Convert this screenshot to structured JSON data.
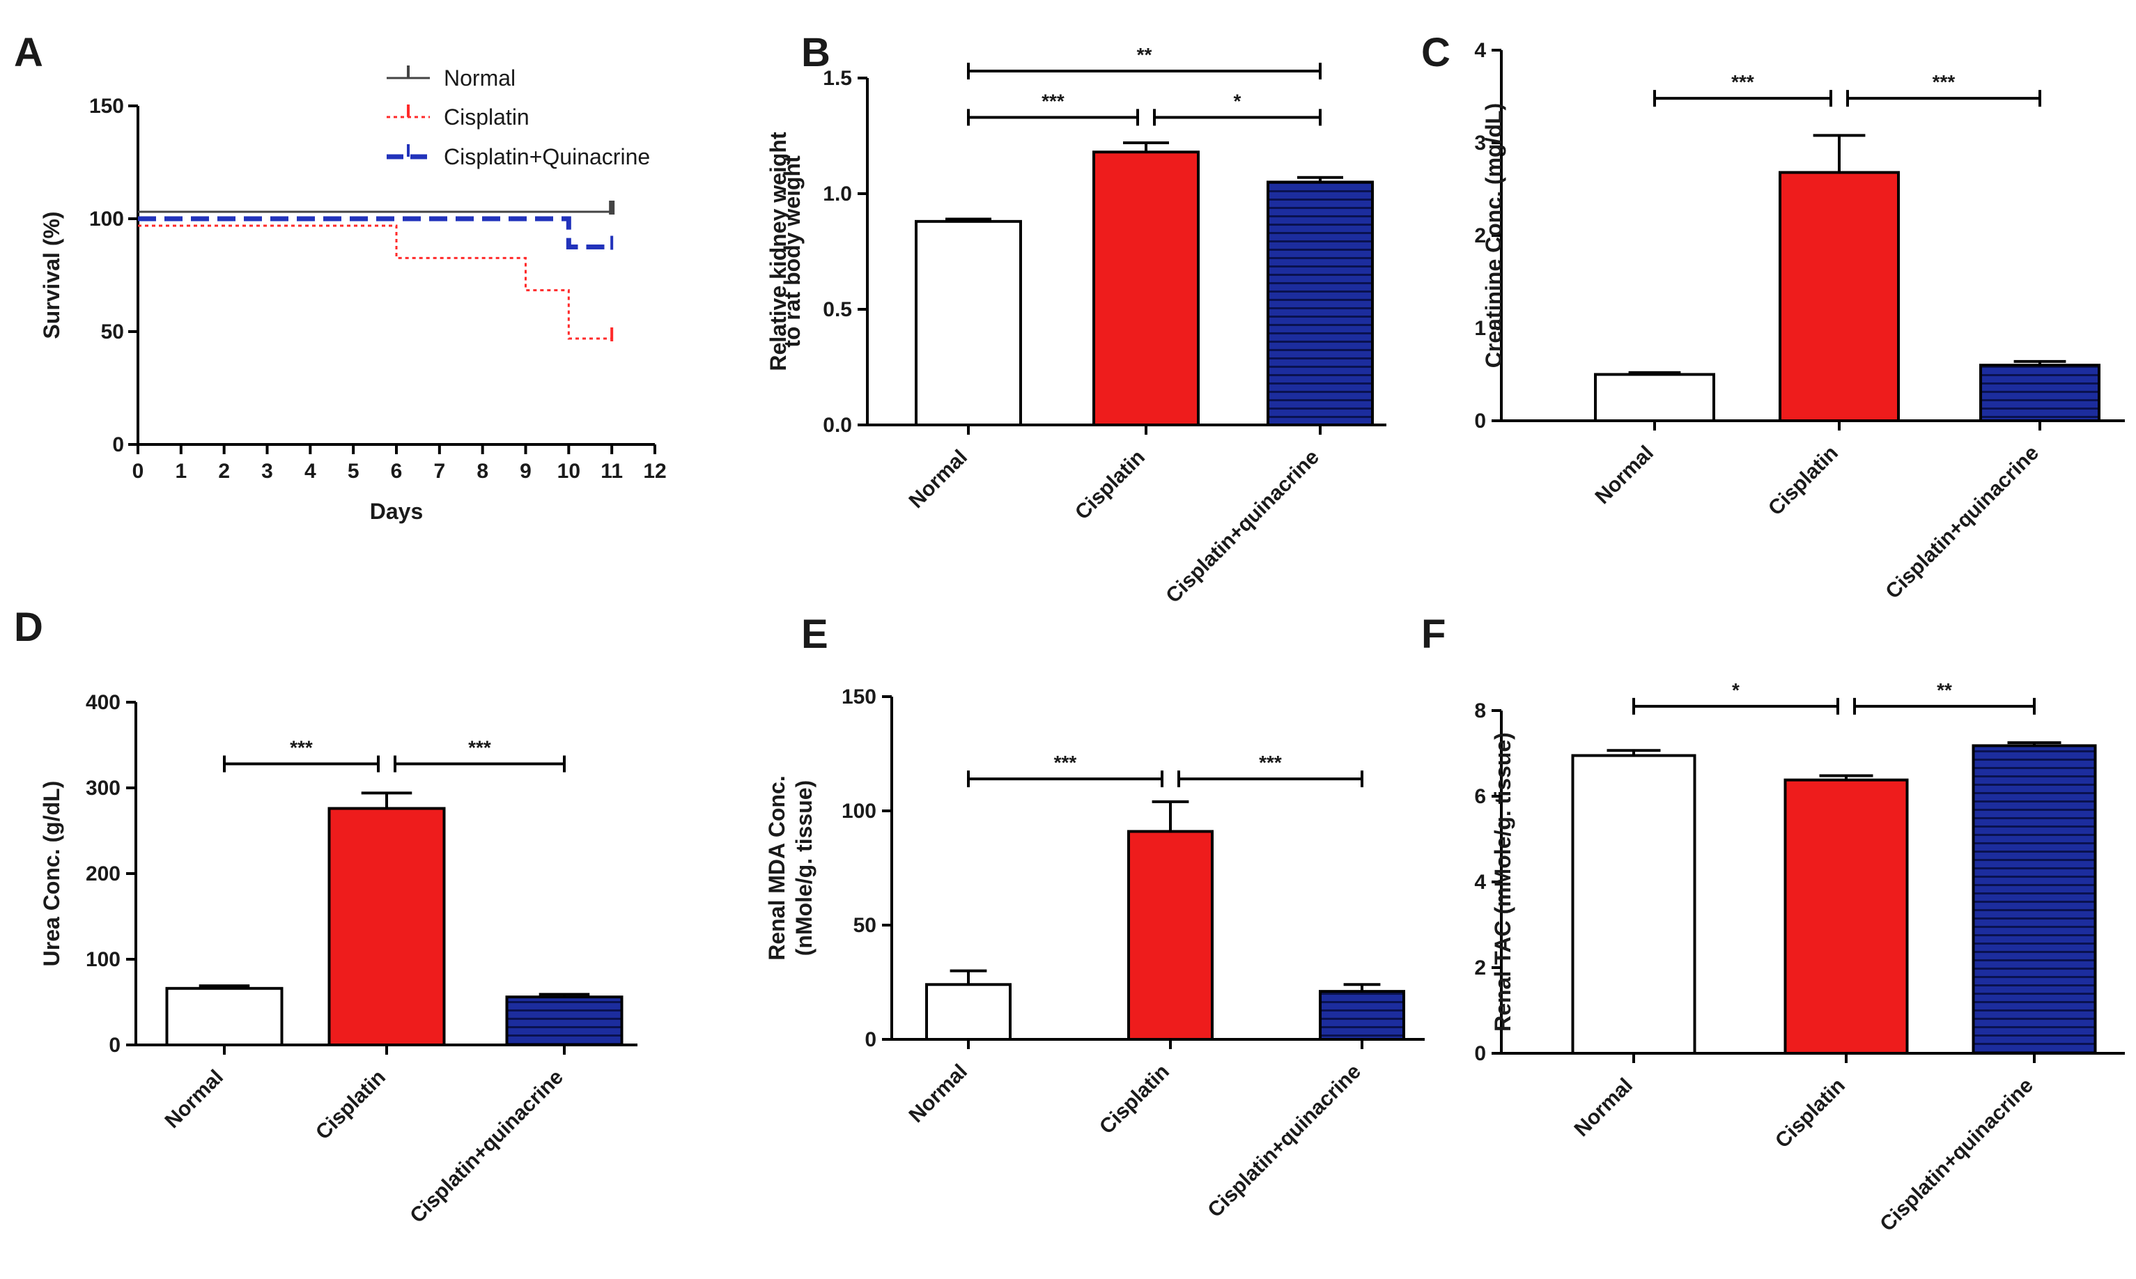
{
  "colors": {
    "normal": "#ffffff",
    "cisplatin": "#ee1c1c",
    "quinacrine": "#1c2d9e",
    "survival_normal": "#444444",
    "survival_cisplatin": "#ff2a2a",
    "survival_quinacrine": "#2233bb"
  },
  "chart_data": [
    {
      "id": "A",
      "letter": "A",
      "type": "line",
      "subtype": "kaplan-meier",
      "xlabel": "Days",
      "ylabel": "Survival (%)",
      "xlim": [
        0,
        12
      ],
      "ylim": [
        0,
        150
      ],
      "xticks": [
        "0",
        "1",
        "2",
        "3",
        "4",
        "5",
        "6",
        "7",
        "8",
        "9",
        "10",
        "11",
        "12"
      ],
      "yticks": [
        "0",
        "50",
        "100",
        "150"
      ],
      "legend_position": "top-right",
      "series": [
        {
          "name": "Normal",
          "color_key": "survival_normal",
          "style": "solid",
          "steps": [
            [
              0,
              100
            ],
            [
              11,
              100
            ]
          ],
          "censor_at": 11
        },
        {
          "name": "Cisplatin",
          "color_key": "survival_cisplatin",
          "style": "dotted",
          "steps": [
            [
              0,
              100
            ],
            [
              6,
              100
            ],
            [
              6,
              85.7
            ],
            [
              9,
              85.7
            ],
            [
              9,
              71.4
            ],
            [
              10,
              71.4
            ],
            [
              10,
              50
            ],
            [
              11,
              50
            ]
          ],
          "censor_at": 11
        },
        {
          "name": "Cisplatin+Quinacrine",
          "color_key": "survival_quinacrine",
          "style": "dashed",
          "steps": [
            [
              0,
              100
            ],
            [
              10,
              100
            ],
            [
              10,
              87.5
            ],
            [
              11,
              87.5
            ]
          ],
          "censor_at": 11
        }
      ]
    },
    {
      "id": "B",
      "letter": "B",
      "type": "bar",
      "ylabel_lines": [
        "Relative kidney weight",
        "to rat body weight"
      ],
      "ylim": [
        0,
        1.5
      ],
      "yticks": [
        "0.0",
        "0.5",
        "1.0",
        "1.5"
      ],
      "categories": [
        "Normal",
        "Cisplatin",
        "Cisplatin+quinacrine"
      ],
      "values": [
        0.88,
        1.18,
        1.05
      ],
      "errors": [
        0.01,
        0.04,
        0.02
      ],
      "comparisons": [
        {
          "from": 0,
          "to": 2,
          "label": "**",
          "level": 1.53
        },
        {
          "from": 0,
          "to": 1,
          "label": "***",
          "level": 1.33
        },
        {
          "from": 1,
          "to": 2,
          "label": "*",
          "level": 1.33
        }
      ]
    },
    {
      "id": "C",
      "letter": "C",
      "type": "bar",
      "ylabel_lines": [
        "Creatinine Conc. (mg/dL)"
      ],
      "ylim": [
        0,
        4
      ],
      "yticks": [
        "0",
        "1",
        "2",
        "3",
        "4"
      ],
      "categories": [
        "Normal",
        "Cisplatin",
        "Cisplatin+quinacrine"
      ],
      "values": [
        0.5,
        2.68,
        0.6
      ],
      "errors": [
        0.02,
        0.4,
        0.04
      ],
      "comparisons": [
        {
          "from": 0,
          "to": 1,
          "label": "***",
          "level": 3.48
        },
        {
          "from": 1,
          "to": 2,
          "label": "***",
          "level": 3.48
        }
      ]
    },
    {
      "id": "D",
      "letter": "D",
      "type": "bar",
      "ylabel_lines": [
        "Urea Conc. (g/dL)"
      ],
      "ylim": [
        0,
        400
      ],
      "yticks": [
        "0",
        "100",
        "200",
        "300",
        "400"
      ],
      "categories": [
        "Normal",
        "Cisplatin",
        "Cisplatin+quinacrine"
      ],
      "values": [
        66,
        276,
        56
      ],
      "errors": [
        3,
        18,
        3
      ],
      "comparisons": [
        {
          "from": 0,
          "to": 1,
          "label": "***",
          "level": 328
        },
        {
          "from": 1,
          "to": 2,
          "label": "***",
          "level": 328
        }
      ]
    },
    {
      "id": "E",
      "letter": "E",
      "type": "bar",
      "ylabel_lines": [
        "Renal MDA Conc.",
        "(nMole/g. tissue)"
      ],
      "ylim": [
        0,
        150
      ],
      "yticks": [
        "0",
        "50",
        "100",
        "150"
      ],
      "categories": [
        "Normal",
        "Cisplatin",
        "Cisplatin+quinacrine"
      ],
      "values": [
        24,
        91,
        21
      ],
      "errors": [
        6,
        13,
        3
      ],
      "comparisons": [
        {
          "from": 0,
          "to": 1,
          "label": "***",
          "level": 114
        },
        {
          "from": 1,
          "to": 2,
          "label": "***",
          "level": 114
        }
      ]
    },
    {
      "id": "F",
      "letter": "F",
      "type": "bar",
      "ylabel_lines": [
        "Renal TAC (mMole/g. tissue)"
      ],
      "ylim": [
        0,
        8
      ],
      "yticks": [
        "0",
        "2",
        "4",
        "6",
        "8"
      ],
      "categories": [
        "Normal",
        "Cisplatin",
        "Cisplatin+quinacrine"
      ],
      "values": [
        6.95,
        6.38,
        7.18
      ],
      "errors": [
        0.12,
        0.1,
        0.07
      ],
      "comparisons": [
        {
          "from": 0,
          "to": 1,
          "label": "*",
          "level": 8.1
        },
        {
          "from": 1,
          "to": 2,
          "label": "**",
          "level": 8.1
        }
      ]
    }
  ]
}
